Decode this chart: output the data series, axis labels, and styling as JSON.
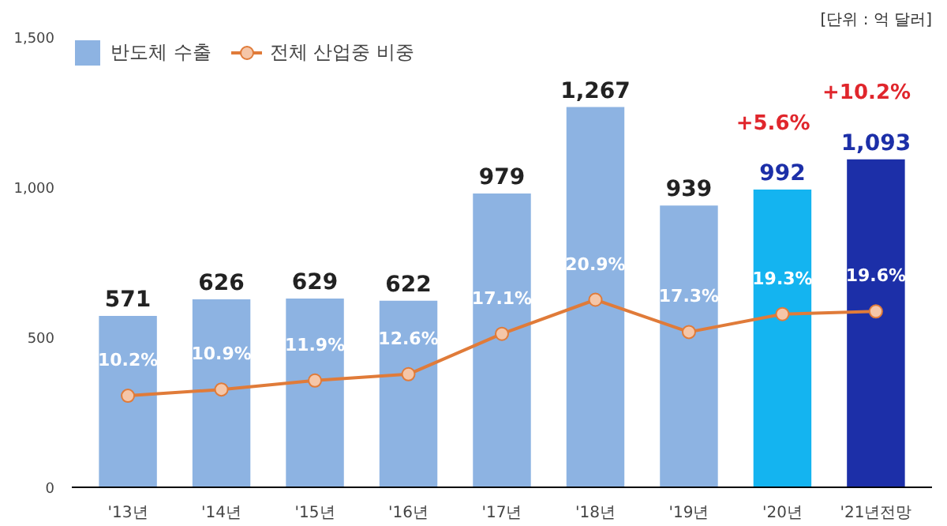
{
  "chart_data": {
    "type": "bar",
    "categories": [
      "'13년",
      "'14년",
      "'15년",
      "'16년",
      "'17년",
      "'18년",
      "'19년",
      "'20년",
      "'21년전망"
    ],
    "series": [
      {
        "name": "반도체 수출",
        "color": "#8db3e2",
        "colors": [
          "#8db3e2",
          "#8db3e2",
          "#8db3e2",
          "#8db3e2",
          "#8db3e2",
          "#8db3e2",
          "#8db3e2",
          "#14b4f0",
          "#1c2fa8"
        ],
        "values": [
          571,
          626,
          629,
          622,
          979,
          1267,
          939,
          992,
          1093
        ],
        "value_labels": [
          "571",
          "626",
          "629",
          "622",
          "979",
          "1,267",
          "939",
          "992",
          "1,093"
        ]
      },
      {
        "name": "전체 산업중 비중",
        "type": "line",
        "axis": "y2",
        "color": "#e07b39",
        "marker": "circle",
        "values": [
          10.2,
          10.9,
          11.9,
          12.6,
          17.1,
          20.9,
          17.3,
          19.3,
          19.6
        ],
        "value_labels": [
          "10.2%",
          "10.9%",
          "11.9%",
          "12.6%",
          "17.1%",
          "20.9%",
          "17.3%",
          "19.3%",
          "19.6%"
        ]
      }
    ],
    "ylim": [
      0,
      1500
    ],
    "yticks": [
      0,
      500,
      {
        "value": 1000,
        "label": "1,000"
      },
      {
        "value": 1500,
        "label": "1,500"
      }
    ],
    "grid": false,
    "legend": "top left",
    "annotations": [
      "+5.6%",
      "+10.2%",
      "[단위 : 억 달러]"
    ]
  }
}
